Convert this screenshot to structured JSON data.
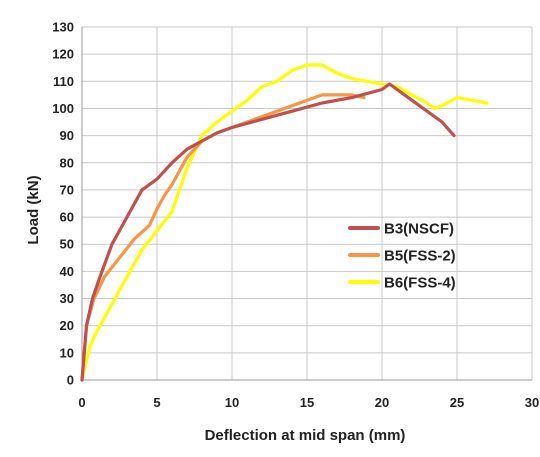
{
  "chart_data": {
    "type": "line",
    "title": "",
    "xlabel": "Deflection at mid span (mm)",
    "ylabel": "Load (kN)",
    "xlim": [
      0,
      30
    ],
    "ylim": [
      0,
      130
    ],
    "xticks": [
      0,
      5,
      10,
      15,
      20,
      25,
      30
    ],
    "yticks": [
      0,
      10,
      20,
      30,
      40,
      50,
      60,
      70,
      80,
      90,
      100,
      110,
      120,
      130
    ],
    "xtick_labels": [
      "0",
      "5",
      "10",
      "15",
      "20",
      "25",
      "30"
    ],
    "ytick_labels": [
      "0",
      "10",
      "20",
      "30",
      "40",
      "50",
      "60",
      "70",
      "80",
      "90",
      "100",
      "110",
      "120",
      "130"
    ],
    "grid": true,
    "legend_position": "right",
    "series": [
      {
        "name": "B3(NSCF)",
        "color": "#c0504d",
        "x": [
          0,
          0.3,
          0.7,
          1.2,
          2,
          3,
          4,
          5,
          6,
          7,
          8,
          9,
          10,
          12,
          14,
          16,
          18,
          20,
          20.5,
          22,
          24,
          24.8
        ],
        "y": [
          0,
          20,
          30,
          38,
          50,
          60,
          70,
          74,
          80,
          85,
          88,
          91,
          93,
          96,
          99,
          102,
          104,
          107,
          109,
          103,
          95,
          90
        ]
      },
      {
        "name": "B5(FSS-2)",
        "color": "#f79646",
        "x": [
          0,
          0.3,
          0.8,
          1.5,
          2.5,
          3.5,
          4.5,
          5,
          5.5,
          6,
          7,
          8,
          9,
          10,
          12,
          14,
          16,
          18,
          18.8
        ],
        "y": [
          0,
          20,
          30,
          38,
          45,
          52,
          57,
          63,
          68,
          72,
          82,
          88,
          91,
          93,
          97,
          101,
          105,
          105,
          104
        ]
      },
      {
        "name": "B6(FSS-4)",
        "color": "#ffff00",
        "x": [
          0,
          0.5,
          1,
          2,
          3,
          4,
          5,
          6,
          7,
          8,
          9,
          10,
          11,
          12,
          13,
          14,
          15,
          16,
          17,
          18,
          19,
          20,
          21,
          22,
          23,
          23.5,
          24,
          25,
          26,
          27
        ],
        "y": [
          0,
          12,
          18,
          28,
          38,
          48,
          55,
          62,
          78,
          90,
          95,
          99,
          103,
          108,
          110,
          114,
          116,
          116,
          113,
          111,
          110,
          109,
          108,
          105,
          102,
          100,
          101,
          104,
          103,
          102
        ]
      }
    ]
  }
}
